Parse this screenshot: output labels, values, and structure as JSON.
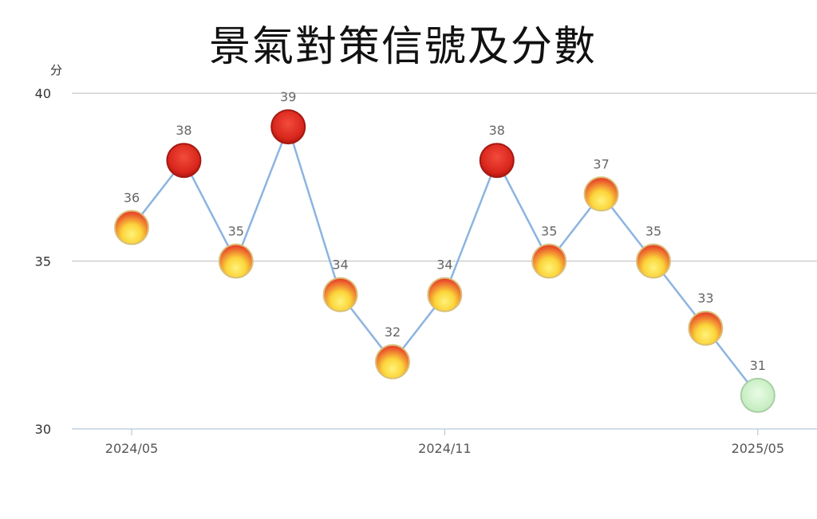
{
  "chart_data": {
    "type": "line",
    "title": "景氣對策信號及分數",
    "ylabel": "分",
    "ylim": [
      30,
      40
    ],
    "yticks": [
      30,
      35,
      40
    ],
    "grid": true,
    "x": [
      "2024/05",
      "2024/06",
      "2024/07",
      "2024/08",
      "2024/09",
      "2024/10",
      "2024/11",
      "2024/12",
      "2025/01",
      "2025/02",
      "2025/03",
      "2025/04",
      "2025/05"
    ],
    "xtick_labels": [
      "2024/05",
      "2024/11",
      "2025/05"
    ],
    "values": [
      36,
      38,
      35,
      39,
      34,
      32,
      34,
      38,
      35,
      37,
      35,
      33,
      31
    ],
    "signals": [
      "yellow-red",
      "red",
      "yellow-red",
      "red",
      "yellow-red",
      "yellow-red",
      "yellow-red",
      "red",
      "yellow-red",
      "yellow-red",
      "yellow-red",
      "yellow-red",
      "green"
    ],
    "line_color": "#8cb4e0",
    "signal_colors": {
      "red": "#e8302a",
      "yellow-red": "#f5c842",
      "green": "#c8f0c8"
    }
  }
}
